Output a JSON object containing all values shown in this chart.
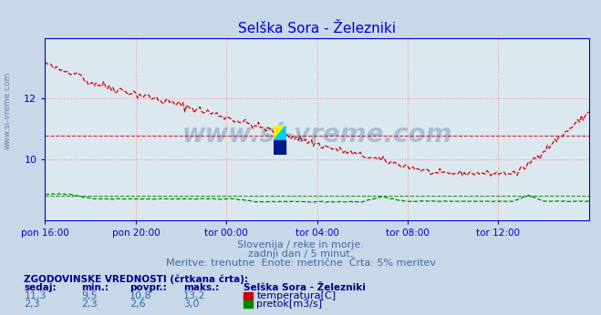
{
  "title": "Selška Sora - Železniki",
  "title_color": "#0000cc",
  "bg_color": "#c8d8e8",
  "plot_bg_color": "#dce8f0",
  "grid_color": "#ff8888",
  "xlabel_ticks": [
    "pon 16:00",
    "pon 20:00",
    "tor 00:00",
    "tor 04:00",
    "tor 08:00",
    "tor 12:00"
  ],
  "xlim": [
    0,
    288
  ],
  "tick_positions": [
    0,
    48,
    96,
    144,
    192,
    240
  ],
  "temp_ylim": [
    8.0,
    14.0
  ],
  "temp_yticks": [
    10,
    12
  ],
  "temp_avg": 10.8,
  "pretok_ylim": [
    0.0,
    14.0
  ],
  "pretok_scale_max": 3.5,
  "pretok_avg": 2.6,
  "temp_color": "#cc0000",
  "pretok_color": "#008800",
  "axis_color": "#0000cc",
  "watermark_text": "www.si-vreme.com",
  "watermark_color": "#1a4488",
  "watermark_alpha": 0.25,
  "subtitle1": "Slovenija / reke in morje.",
  "subtitle2": "zadnji dan / 5 minut.",
  "subtitle3": "Meritve: trenutne  Enote: metrične  Črta: 5% meritev",
  "subtitle_color": "#4466aa",
  "legend_title": "ZGODOVINSKE VREDNOSTI (črtkana črta):",
  "legend_headers": [
    "sedaj:",
    "min.:",
    "povpr.:",
    "maks.:"
  ],
  "legend_header_color": "#000088",
  "legend_data_color": "#3366aa",
  "legend_station": "Selška Sora - Železniki",
  "legend_row1": [
    "11,3",
    "9,5",
    "10,8",
    "13,2",
    "temperatura[C]"
  ],
  "legend_row2": [
    "2,3",
    "2,3",
    "2,6",
    "3,0",
    "pretok[m3/s]"
  ]
}
